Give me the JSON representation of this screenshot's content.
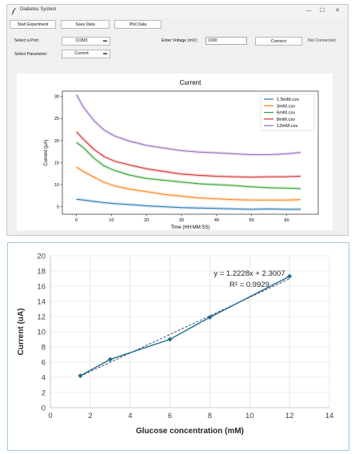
{
  "window": {
    "title": "Diabetes System",
    "controls": {
      "minimize": "—",
      "maximize": "☐",
      "close": "✕"
    }
  },
  "toolbar": {
    "start_label": "Start Experiment",
    "save_label": "Save Data",
    "plot_label": "Plot Data"
  },
  "form": {
    "port_label": "Select a Port:",
    "port_value": "COM3",
    "parameter_label": "Select Parameter:",
    "parameter_value": "Current",
    "voltage_label": "Enter Voltage (mV):",
    "voltage_value": "1000",
    "connect_label": "Connect",
    "status": "Not Connected"
  },
  "plot1": {
    "chart_data": {
      "type": "line",
      "title": "Current",
      "xlabel": "Time (HH:MM:SS)",
      "ylabel": "Current (µA)",
      "xlim": [
        -4,
        69
      ],
      "ylim": [
        3.3,
        31.2
      ],
      "x_ticks": [
        0,
        10,
        20,
        30,
        40,
        50,
        60
      ],
      "y_ticks": [
        5,
        10,
        15,
        20,
        25,
        30
      ],
      "legend_position": "top-right",
      "x": [
        0,
        2,
        5,
        8,
        11,
        15,
        20,
        25,
        30,
        35,
        40,
        45,
        50,
        55,
        60,
        64
      ],
      "series": [
        {
          "name": "1.5mM.csv",
          "color": "#1f77b4",
          "values": [
            6.7,
            6.5,
            6.2,
            5.9,
            5.7,
            5.5,
            5.2,
            5.0,
            4.8,
            4.7,
            4.6,
            4.5,
            4.4,
            4.5,
            4.4,
            4.4
          ]
        },
        {
          "name": "3mM.csv",
          "color": "#ff7f0e",
          "values": [
            14.0,
            13.0,
            11.7,
            10.5,
            9.7,
            9.0,
            8.4,
            7.8,
            7.4,
            7.0,
            6.8,
            6.6,
            6.5,
            6.5,
            6.5,
            6.6
          ]
        },
        {
          "name": "6mM.csv",
          "color": "#2ca02c",
          "values": [
            19.6,
            18.4,
            16.0,
            14.2,
            13.2,
            12.2,
            11.4,
            11.0,
            10.6,
            10.2,
            10.0,
            9.8,
            9.5,
            9.3,
            9.2,
            9.1
          ]
        },
        {
          "name": "8mM.csv",
          "color": "#d62728",
          "values": [
            22.0,
            20.3,
            18.0,
            16.3,
            15.3,
            14.5,
            13.6,
            13.0,
            12.4,
            12.1,
            11.9,
            11.8,
            11.7,
            11.8,
            11.8,
            11.9
          ]
        },
        {
          "name": "12mM.csv",
          "color": "#9467bd",
          "values": [
            30.4,
            27.6,
            24.5,
            22.3,
            21.0,
            19.9,
            18.9,
            18.3,
            17.7,
            17.4,
            17.2,
            17.0,
            16.8,
            16.8,
            17.0,
            17.3
          ]
        }
      ]
    }
  },
  "plot2": {
    "chart_data": {
      "type": "scatter",
      "xlabel": "Glucose concentration (mM)",
      "ylabel": "Current (uA)",
      "xlim": [
        0,
        14
      ],
      "ylim": [
        0,
        20
      ],
      "x_ticks": [
        0,
        2,
        4,
        6,
        8,
        10,
        12,
        14
      ],
      "y_ticks": [
        0,
        2,
        4,
        6,
        8,
        10,
        12,
        14,
        16,
        18,
        20
      ],
      "grid": true,
      "series": [
        {
          "x": [
            1.5,
            3,
            6,
            8,
            12
          ],
          "values": [
            4.2,
            6.35,
            9.0,
            11.9,
            17.3
          ],
          "color": "#1e6b8a"
        }
      ],
      "trendline": {
        "slope": 1.2228,
        "intercept": 2.3007,
        "style": "dashed"
      },
      "annotations": [
        "y = 1.2228x + 2.3007",
        "R² = 0.9929"
      ]
    }
  }
}
